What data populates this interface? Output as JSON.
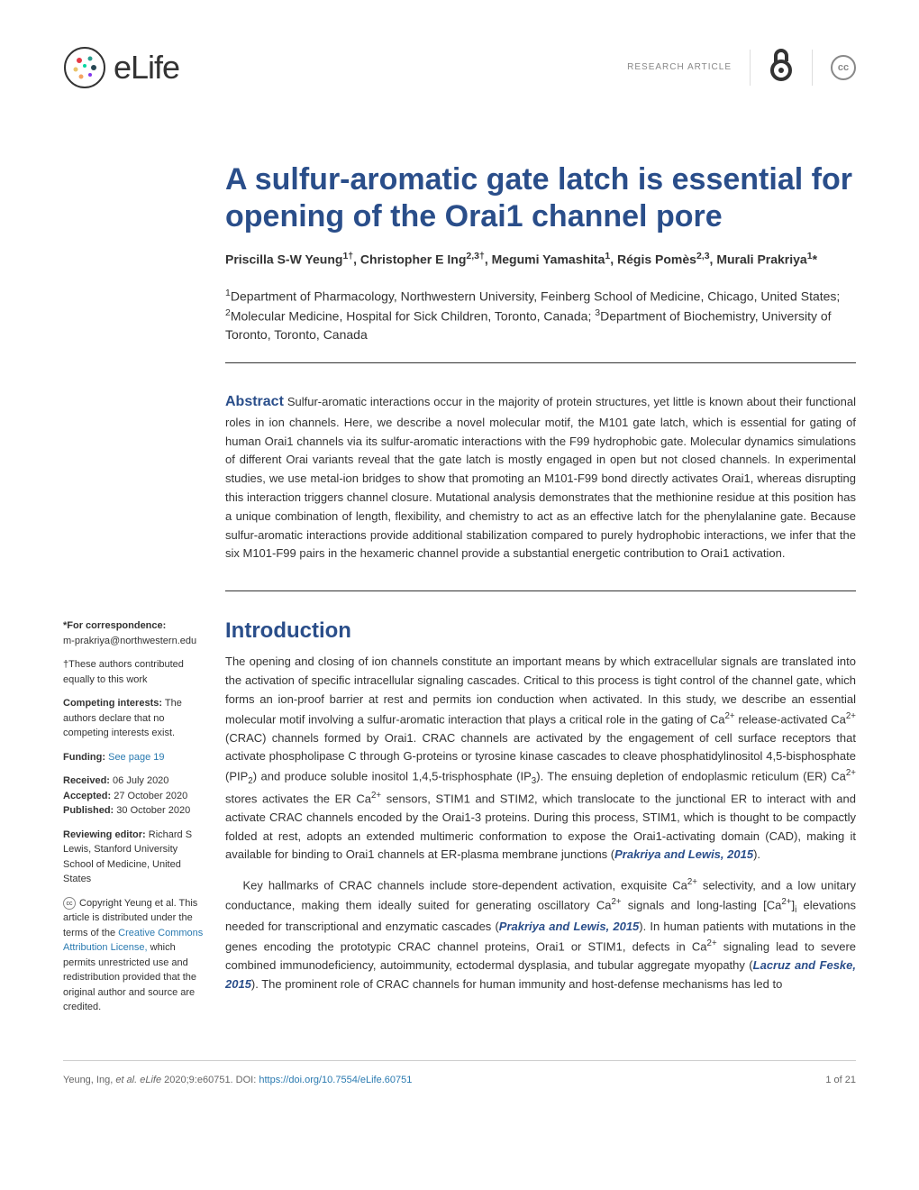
{
  "header": {
    "logo_text": "eLife",
    "article_type": "RESEARCH ARTICLE",
    "oa_symbol": "∂",
    "cc_symbol": "cc"
  },
  "title": "A sulfur-aromatic gate latch is essential for opening of the Orai1 channel pore",
  "authors_html": "Priscilla S-W Yeung<sup>1†</sup>, Christopher E Ing<sup>2,3†</sup>, Megumi Yamashita<sup>1</sup>, Régis Pomès<sup>2,3</sup>, Murali Prakriya<sup>1</sup>*",
  "affiliations_html": "<sup>1</sup>Department of Pharmacology, Northwestern University, Feinberg School of Medicine, Chicago, United States; <sup>2</sup>Molecular Medicine, Hospital for Sick Children, Toronto, Canada; <sup>3</sup>Department of Biochemistry, University of Toronto, Toronto, Canada",
  "abstract_label": "Abstract",
  "abstract_text": "Sulfur-aromatic interactions occur in the majority of protein structures, yet little is known about their functional roles in ion channels. Here, we describe a novel molecular motif, the M101 gate latch, which is essential for gating of human Orai1 channels via its sulfur-aromatic interactions with the F99 hydrophobic gate. Molecular dynamics simulations of different Orai variants reveal that the gate latch is mostly engaged in open but not closed channels. In experimental studies, we use metal-ion bridges to show that promoting an M101-F99 bond directly activates Orai1, whereas disrupting this interaction triggers channel closure. Mutational analysis demonstrates that the methionine residue at this position has a unique combination of length, flexibility, and chemistry to act as an effective latch for the phenylalanine gate. Because sulfur-aromatic interactions provide additional stabilization compared to purely hydrophobic interactions, we infer that the six M101-F99 pairs in the hexameric channel provide a substantial energetic contribution to Orai1 activation.",
  "sidebar": {
    "correspondence_label": "*For correspondence:",
    "correspondence_email": "m-prakriya@northwestern.edu",
    "contrib_note": "†These authors contributed equally to this work",
    "competing_label": "Competing interests:",
    "competing_text": " The authors declare that no competing interests exist.",
    "funding_label": "Funding:",
    "funding_link": " See page 19",
    "received_label": "Received:",
    "received_date": " 06 July 2020",
    "accepted_label": "Accepted:",
    "accepted_date": " 27 October 2020",
    "published_label": "Published:",
    "published_date": " 30 October 2020",
    "reviewing_label": "Reviewing editor:",
    "reviewing_text": " Richard S Lewis, Stanford University School of Medicine, United States",
    "copyright_text": "Copyright Yeung et al. This article is distributed under the terms of the ",
    "cc_link": "Creative Commons Attribution License,",
    "copyright_text2": " which permits unrestricted use and redistribution provided that the original author and source are credited."
  },
  "introduction": {
    "heading": "Introduction",
    "p1_html": "The opening and closing of ion channels constitute an important means by which extracellular signals are translated into the activation of specific intracellular signaling cascades. Critical to this process is tight control of the channel gate, which forms an ion-proof barrier at rest and permits ion conduction when activated. In this study, we describe an essential molecular motif involving a sulfur-aromatic interaction that plays a critical role in the gating of Ca<sup>2+</sup> release-activated Ca<sup>2+</sup> (CRAC) channels formed by Orai1. CRAC channels are activated by the engagement of cell surface receptors that activate phospholipase C through G-proteins or tyrosine kinase cascades to cleave phosphatidylinositol 4,5-bisphosphate (PIP<sub>2</sub>) and produce soluble inositol 1,4,5-trisphosphate (IP<sub>3</sub>). The ensuing depletion of endoplasmic reticulum (ER) Ca<sup>2+</sup> stores activates the ER Ca<sup>2+</sup> sensors, STIM1 and STIM2, which translocate to the junctional ER to interact with and activate CRAC channels encoded by the Orai1-3 proteins. During this process, STIM1, which is thought to be compactly folded at rest, adopts an extended multimeric conformation to expose the Orai1-activating domain (CAD), making it available for binding to Orai1 channels at ER-plasma membrane junctions (<span class='citation'>Prakriya and Lewis, 2015</span>).",
    "p2_html": "Key hallmarks of CRAC channels include store-dependent activation, exquisite Ca<sup>2+</sup> selectivity, and a low unitary conductance, making them ideally suited for generating oscillatory Ca<sup>2+</sup> signals and long-lasting [Ca<sup>2+</sup>]<sub>i</sub> elevations needed for transcriptional and enzymatic cascades (<span class='citation'>Prakriya and Lewis, 2015</span>). In human patients with mutations in the genes encoding the prototypic CRAC channel proteins, Orai1 or STIM1, defects in Ca<sup>2+</sup> signaling lead to severe combined immunodeficiency, autoimmunity, ectodermal dysplasia, and tubular aggregate myopathy (<span class='citation'>Lacruz and Feske, 2015</span>). The prominent role of CRAC channels for human immunity and host-defense mechanisms has led to"
  },
  "footer": {
    "citation_html": "Yeung, Ing, <i>et al. eLife</i> 2020;9:e60751. ",
    "doi_label": "DOI: ",
    "doi_link": "https://doi.org/10.7554/eLife.60751",
    "page_num": "1 of 21"
  },
  "colors": {
    "title_color": "#2a4e8a",
    "link_color": "#2a7ab0",
    "text_color": "#333333",
    "bg_color": "#ffffff"
  }
}
